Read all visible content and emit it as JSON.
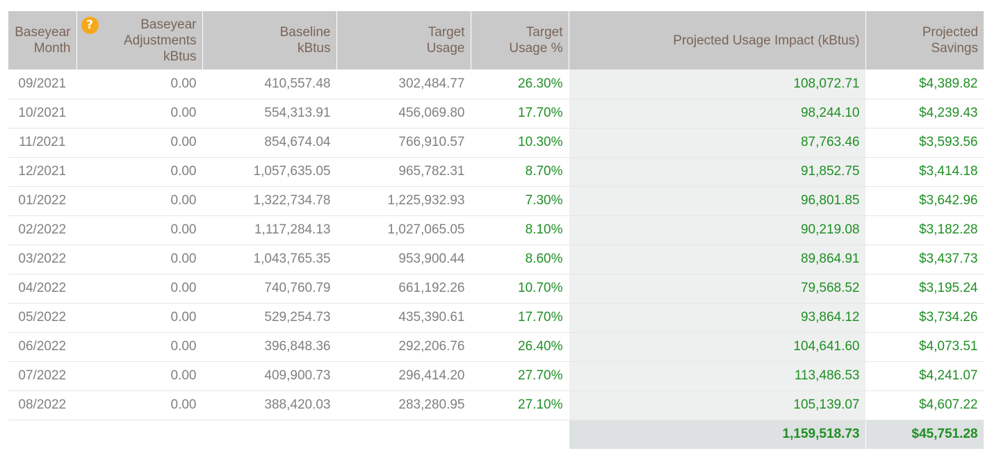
{
  "headers": {
    "month": [
      "Baseyear",
      "Month"
    ],
    "adjustments": [
      "Baseyear",
      "Adjustments",
      "kBtus"
    ],
    "baseline": [
      "Baseline",
      "kBtus"
    ],
    "target_usage": [
      "Target",
      "Usage"
    ],
    "target_pct": [
      "Target",
      "Usage %"
    ],
    "impact": [
      "Projected Usage Impact (kBtus)"
    ],
    "savings": [
      "Projected",
      "Savings"
    ]
  },
  "help_icon": {
    "name": "question-icon",
    "glyph": "?",
    "color": "#f6a81c"
  },
  "rows": [
    {
      "month": "09/2021",
      "adjustments": "0.00",
      "baseline": "410,557.48",
      "target_usage": "302,484.77",
      "target_pct": "26.30%",
      "impact": "108,072.71",
      "savings": "$4,389.82"
    },
    {
      "month": "10/2021",
      "adjustments": "0.00",
      "baseline": "554,313.91",
      "target_usage": "456,069.80",
      "target_pct": "17.70%",
      "impact": "98,244.10",
      "savings": "$4,239.43"
    },
    {
      "month": "11/2021",
      "adjustments": "0.00",
      "baseline": "854,674.04",
      "target_usage": "766,910.57",
      "target_pct": "10.30%",
      "impact": "87,763.46",
      "savings": "$3,593.56"
    },
    {
      "month": "12/2021",
      "adjustments": "0.00",
      "baseline": "1,057,635.05",
      "target_usage": "965,782.31",
      "target_pct": "8.70%",
      "impact": "91,852.75",
      "savings": "$3,414.18"
    },
    {
      "month": "01/2022",
      "adjustments": "0.00",
      "baseline": "1,322,734.78",
      "target_usage": "1,225,932.93",
      "target_pct": "7.30%",
      "impact": "96,801.85",
      "savings": "$3,642.96"
    },
    {
      "month": "02/2022",
      "adjustments": "0.00",
      "baseline": "1,117,284.13",
      "target_usage": "1,027,065.05",
      "target_pct": "8.10%",
      "impact": "90,219.08",
      "savings": "$3,182.28"
    },
    {
      "month": "03/2022",
      "adjustments": "0.00",
      "baseline": "1,043,765.35",
      "target_usage": "953,900.44",
      "target_pct": "8.60%",
      "impact": "89,864.91",
      "savings": "$3,437.73"
    },
    {
      "month": "04/2022",
      "adjustments": "0.00",
      "baseline": "740,760.79",
      "target_usage": "661,192.26",
      "target_pct": "10.70%",
      "impact": "79,568.52",
      "savings": "$3,195.24"
    },
    {
      "month": "05/2022",
      "adjustments": "0.00",
      "baseline": "529,254.73",
      "target_usage": "435,390.61",
      "target_pct": "17.70%",
      "impact": "93,864.12",
      "savings": "$3,734.26"
    },
    {
      "month": "06/2022",
      "adjustments": "0.00",
      "baseline": "396,848.36",
      "target_usage": "292,206.76",
      "target_pct": "26.40%",
      "impact": "104,641.60",
      "savings": "$4,073.51"
    },
    {
      "month": "07/2022",
      "adjustments": "0.00",
      "baseline": "409,900.73",
      "target_usage": "296,414.20",
      "target_pct": "27.70%",
      "impact": "113,486.53",
      "savings": "$4,241.07"
    },
    {
      "month": "08/2022",
      "adjustments": "0.00",
      "baseline": "388,420.03",
      "target_usage": "283,280.95",
      "target_pct": "27.10%",
      "impact": "105,139.07",
      "savings": "$4,607.22"
    }
  ],
  "totals": {
    "impact": "1,159,518.73",
    "savings": "$45,751.28"
  },
  "colors": {
    "header_bg": "#c9c9c9",
    "header_text": "#7a6458",
    "value_green": "#1f8f24",
    "value_gray": "#808080",
    "impact_bg": "#eef0ef",
    "total_bg": "#dde1e1"
  }
}
